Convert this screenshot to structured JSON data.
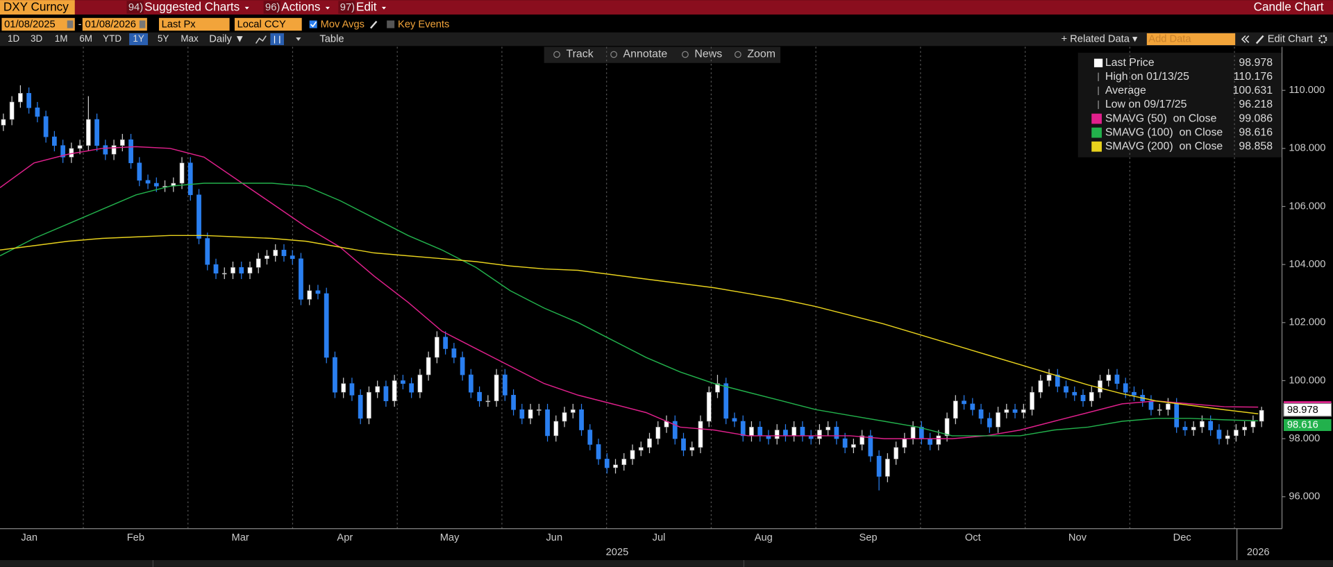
{
  "header": {
    "security": "DXY Curncy",
    "menus": [
      {
        "num": "94)",
        "label": "Suggested Charts"
      },
      {
        "num": "96)",
        "label": "Actions"
      },
      {
        "num": "97)",
        "label": "Edit"
      }
    ],
    "view": "Candle Chart"
  },
  "settings": {
    "start": "01/08/2025",
    "separator": "-",
    "end": "01/08/2026",
    "field": "Last Px",
    "currency": "Local CCY",
    "options": [
      "Mov Avgs",
      "Key Events"
    ]
  },
  "toolbar": {
    "periods": [
      "1D",
      "3D",
      "1M",
      "6M",
      "YTD",
      "1Y",
      "5Y",
      "Max"
    ],
    "frequency": "Daily ▼",
    "table": "Table",
    "related": "+ Related Data ▾",
    "add_data": "Add Data",
    "edit_chart": "Edit Chart"
  },
  "chart_tools": [
    "Track",
    "Annotate",
    "News",
    "Zoom"
  ],
  "chart_data": {
    "type": "candlestick",
    "up_color": "#ffffff",
    "down_color": "#2a7ff0",
    "ylim": [
      94.9,
      111.5
    ],
    "yticks": [
      {
        "value": 96,
        "label": "96.000"
      },
      {
        "value": 98,
        "label": "98.000"
      },
      {
        "value": 100,
        "label": "100.000"
      },
      {
        "value": 102,
        "label": "102.000"
      },
      {
        "value": 104,
        "label": "104.000"
      },
      {
        "value": 106,
        "label": "106.000"
      },
      {
        "value": 108,
        "label": "108.000"
      },
      {
        "value": 110,
        "label": "110.000"
      }
    ],
    "months": [
      "Jan",
      "Feb",
      "Mar",
      "Apr",
      "May",
      "Jun",
      "Jul",
      "Aug",
      "Sep",
      "Oct",
      "Nov",
      "Dec"
    ],
    "years": [
      "2025",
      "2026"
    ],
    "open": [
      108.8,
      109.0,
      109.6,
      109.9,
      109.4,
      109.1,
      108.4,
      108.1,
      107.7,
      108.0,
      108.1,
      109.0,
      108.1,
      107.8,
      108.1,
      108.3,
      107.5,
      106.9,
      106.8,
      106.7,
      106.7,
      106.8,
      107.5,
      106.4,
      104.9,
      104.0,
      103.7,
      103.7,
      103.9,
      103.7,
      103.9,
      104.2,
      104.3,
      104.5,
      104.3,
      104.2,
      102.8,
      103.1,
      103.0,
      100.8,
      99.6,
      99.9,
      99.5,
      98.7,
      99.6,
      99.8,
      99.3,
      100.0,
      99.9,
      99.6,
      100.2,
      100.8,
      101.5,
      101.1,
      100.8,
      100.2,
      99.6,
      99.3,
      99.3,
      100.2,
      99.5,
      99.0,
      98.7,
      99.0,
      99.0,
      98.1,
      98.6,
      98.9,
      99.0,
      98.3,
      97.8,
      97.3,
      97.0,
      97.1,
      97.3,
      97.6,
      97.7,
      98.0,
      98.4,
      98.6,
      98.0,
      97.6,
      97.7,
      98.6,
      99.6,
      99.9,
      98.7,
      98.6,
      98.1,
      98.4,
      98.1,
      98.0,
      98.3,
      98.1,
      98.4,
      98.1,
      98.0,
      98.3,
      98.4,
      98.0,
      97.7,
      97.8,
      98.1,
      97.4,
      96.7,
      97.3,
      97.7,
      98.0,
      98.4,
      98.0,
      97.8,
      98.1,
      98.7,
      99.3,
      99.2,
      99.0,
      98.7,
      98.4,
      98.9,
      99.0,
      98.9,
      99.0,
      99.6,
      100.0,
      100.2,
      99.8,
      99.6,
      99.5,
      99.3,
      99.6,
      100.0,
      100.2,
      99.9,
      99.6,
      99.5,
      99.3,
      99.0,
      99.0,
      99.2,
      98.4,
      98.3,
      98.4,
      98.6,
      98.3,
      98.0,
      98.1,
      98.3,
      98.4,
      98.6
    ],
    "high": [
      109.2,
      109.8,
      110.176,
      110.1,
      109.6,
      109.3,
      108.6,
      108.3,
      108.2,
      108.3,
      109.8,
      109.2,
      108.3,
      108.3,
      108.5,
      108.5,
      107.7,
      107.1,
      107.0,
      106.9,
      107.0,
      107.7,
      107.7,
      106.6,
      105.1,
      104.2,
      103.9,
      104.1,
      104.1,
      104.1,
      104.4,
      104.5,
      104.7,
      104.7,
      104.5,
      104.4,
      103.3,
      103.3,
      103.2,
      101.0,
      100.1,
      100.1,
      99.7,
      99.8,
      100.0,
      100.0,
      100.2,
      100.2,
      100.1,
      100.4,
      101.0,
      101.7,
      101.7,
      101.3,
      101.0,
      100.4,
      99.8,
      99.5,
      100.4,
      100.4,
      99.7,
      99.2,
      99.2,
      99.2,
      99.2,
      98.8,
      99.1,
      99.2,
      99.2,
      98.5,
      98.0,
      97.5,
      97.3,
      97.5,
      97.8,
      97.9,
      98.2,
      98.6,
      98.8,
      98.8,
      98.2,
      97.9,
      98.8,
      99.8,
      100.2,
      100.1,
      98.9,
      98.8,
      98.6,
      98.6,
      98.3,
      98.5,
      98.5,
      98.6,
      98.6,
      98.3,
      98.5,
      98.6,
      98.6,
      98.2,
      98.0,
      98.3,
      98.3,
      97.6,
      97.5,
      97.9,
      98.2,
      98.6,
      98.6,
      98.2,
      98.3,
      98.9,
      99.5,
      99.5,
      99.4,
      99.2,
      98.9,
      99.1,
      99.2,
      99.2,
      99.2,
      99.8,
      100.2,
      100.4,
      100.4,
      100.0,
      99.8,
      99.7,
      99.8,
      100.2,
      100.4,
      100.4,
      100.1,
      99.8,
      99.7,
      99.5,
      99.2,
      99.4,
      99.4,
      98.6,
      98.6,
      98.8,
      98.8,
      98.5,
      98.3,
      98.5,
      98.6,
      98.8,
      99.1
    ],
    "low": [
      108.6,
      108.8,
      109.4,
      109.2,
      108.9,
      108.2,
      107.9,
      107.5,
      107.5,
      107.8,
      107.9,
      107.9,
      107.6,
      107.6,
      107.9,
      107.3,
      106.7,
      106.6,
      106.5,
      106.5,
      106.5,
      106.6,
      106.2,
      104.7,
      103.8,
      103.5,
      103.5,
      103.5,
      103.5,
      103.5,
      103.7,
      104.0,
      104.1,
      104.1,
      104.0,
      102.6,
      102.6,
      102.8,
      100.6,
      99.4,
      99.4,
      99.3,
      98.5,
      98.5,
      99.4,
      99.1,
      99.1,
      99.7,
      99.4,
      99.4,
      100.0,
      100.6,
      100.9,
      100.6,
      100.0,
      99.4,
      99.1,
      99.1,
      99.1,
      99.3,
      98.8,
      98.5,
      98.5,
      98.8,
      97.9,
      97.9,
      98.4,
      98.7,
      98.1,
      97.6,
      97.1,
      96.8,
      96.8,
      96.9,
      97.1,
      97.4,
      97.5,
      97.8,
      98.2,
      97.8,
      97.4,
      97.4,
      97.5,
      98.4,
      99.4,
      98.5,
      98.4,
      97.9,
      97.9,
      97.9,
      97.8,
      97.8,
      97.9,
      97.9,
      97.9,
      97.8,
      97.8,
      98.1,
      97.8,
      97.5,
      97.5,
      97.6,
      97.2,
      96.218,
      96.5,
      97.1,
      97.5,
      97.8,
      97.8,
      97.6,
      97.6,
      97.9,
      98.5,
      99.0,
      98.8,
      98.5,
      98.2,
      98.2,
      98.7,
      98.7,
      98.7,
      98.8,
      99.4,
      99.8,
      99.6,
      99.4,
      99.3,
      99.1,
      99.1,
      99.4,
      99.8,
      99.7,
      99.4,
      99.3,
      99.1,
      98.8,
      98.8,
      98.8,
      98.2,
      98.1,
      98.1,
      98.2,
      98.1,
      97.8,
      97.8,
      97.9,
      98.1,
      98.2,
      98.4
    ],
    "close": [
      109.0,
      109.6,
      109.9,
      109.4,
      109.1,
      108.4,
      108.1,
      107.7,
      108.0,
      108.1,
      109.0,
      108.1,
      107.8,
      108.1,
      108.3,
      107.5,
      106.9,
      106.8,
      106.7,
      106.7,
      106.8,
      107.5,
      106.4,
      104.9,
      104.0,
      103.7,
      103.7,
      103.9,
      103.7,
      103.9,
      104.2,
      104.3,
      104.5,
      104.3,
      104.2,
      102.8,
      103.1,
      103.0,
      100.8,
      99.6,
      99.9,
      99.5,
      98.7,
      99.6,
      99.8,
      99.3,
      100.0,
      99.9,
      99.6,
      100.2,
      100.8,
      101.5,
      101.1,
      100.8,
      100.2,
      99.6,
      99.3,
      99.3,
      100.2,
      99.5,
      99.0,
      98.7,
      99.0,
      99.0,
      98.1,
      98.6,
      98.9,
      99.0,
      98.3,
      97.8,
      97.3,
      97.0,
      97.1,
      97.3,
      97.6,
      97.7,
      98.0,
      98.4,
      98.6,
      98.0,
      97.6,
      97.7,
      98.6,
      99.6,
      99.9,
      98.7,
      98.6,
      98.1,
      98.4,
      98.1,
      98.0,
      98.3,
      98.1,
      98.4,
      98.1,
      98.0,
      98.3,
      98.4,
      98.0,
      97.7,
      97.8,
      98.1,
      97.4,
      96.7,
      97.3,
      97.7,
      98.0,
      98.4,
      98.0,
      97.8,
      98.1,
      98.7,
      99.3,
      99.2,
      99.0,
      98.7,
      98.4,
      98.9,
      99.0,
      98.9,
      99.0,
      99.6,
      100.0,
      100.2,
      99.8,
      99.6,
      99.5,
      99.3,
      99.6,
      100.0,
      100.2,
      99.9,
      99.6,
      99.5,
      99.3,
      99.0,
      99.0,
      99.2,
      98.4,
      98.3,
      98.4,
      98.6,
      98.3,
      98.0,
      98.1,
      98.3,
      98.4,
      98.6,
      98.978
    ],
    "stats": [
      {
        "label": "Last Price",
        "value": "98.978"
      },
      {
        "label": "High on 01/13/25",
        "value": "110.176"
      },
      {
        "label": "Average",
        "value": "100.631"
      },
      {
        "label": "Low on 09/17/25",
        "value": "96.218"
      }
    ],
    "series": [
      {
        "name": "SMAVG (50)  on Close",
        "color": "#e0208c",
        "last": "99.086",
        "values": [
          106.65,
          107.5,
          107.8,
          108.0,
          108.06,
          108.0,
          107.7,
          106.9,
          106.1,
          105.3,
          104.6,
          103.6,
          102.7,
          101.7,
          101.1,
          100.5,
          99.9,
          99.5,
          99.2,
          98.9,
          98.4,
          98.3,
          98.1,
          98.1,
          98.1,
          98.1,
          98.0,
          98.0,
          98.0,
          98.1,
          98.3,
          98.6,
          98.9,
          99.2,
          99.3,
          99.2,
          99.1,
          99.086
        ]
      },
      {
        "name": "SMAVG (100)  on Close",
        "color": "#22b14c",
        "last": "98.616",
        "values": [
          104.3,
          104.9,
          105.4,
          105.9,
          106.4,
          106.7,
          106.8,
          106.8,
          106.8,
          106.7,
          106.2,
          105.6,
          105.0,
          104.5,
          103.9,
          103.1,
          102.5,
          102.0,
          101.4,
          100.8,
          100.3,
          99.9,
          99.6,
          99.3,
          99.0,
          98.8,
          98.6,
          98.4,
          98.1,
          98.1,
          98.1,
          98.3,
          98.4,
          98.6,
          98.7,
          98.7,
          98.65,
          98.616
        ]
      },
      {
        "name": "SMAVG (200)  on Close",
        "color": "#e8d21d",
        "last": "98.858",
        "values": [
          104.5,
          104.65,
          104.8,
          104.9,
          104.95,
          105.0,
          105.0,
          104.95,
          104.9,
          104.8,
          104.6,
          104.4,
          104.3,
          104.2,
          104.1,
          103.95,
          103.85,
          103.8,
          103.65,
          103.5,
          103.35,
          103.2,
          103.0,
          102.8,
          102.55,
          102.25,
          101.95,
          101.6,
          101.25,
          100.9,
          100.55,
          100.2,
          99.85,
          99.55,
          99.3,
          99.15,
          99.0,
          98.858
        ]
      }
    ]
  }
}
